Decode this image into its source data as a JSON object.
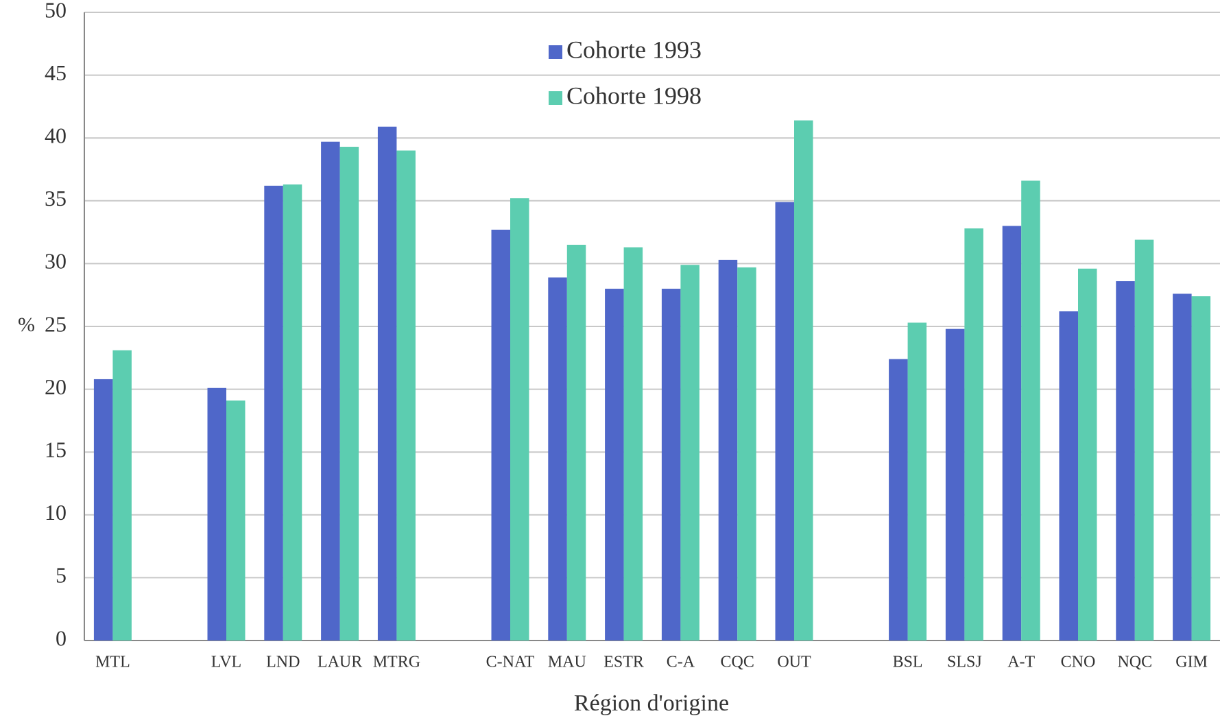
{
  "chart_data": {
    "type": "bar",
    "xlabel": "Région d'origine",
    "ylabel": "%",
    "categories": [
      "MTL",
      null,
      "LVL",
      "LND",
      "LAUR",
      "MTRG",
      null,
      "C-NAT",
      "MAU",
      "ESTR",
      "C-A",
      "CQC",
      "OUT",
      null,
      "BSL",
      "SLSJ",
      "A-T",
      "CNO",
      "NQC",
      "GIM"
    ],
    "series": [
      {
        "name": "Cohorte 1993",
        "color": "#4f67c9",
        "values": [
          20.8,
          null,
          20.1,
          36.2,
          39.7,
          40.9,
          null,
          32.7,
          28.9,
          28.0,
          28.0,
          30.3,
          34.9,
          null,
          22.4,
          24.8,
          33.0,
          26.2,
          28.6,
          27.6
        ]
      },
      {
        "name": "Cohorte 1998",
        "color": "#5ccdb0",
        "values": [
          23.1,
          null,
          19.1,
          36.3,
          39.3,
          39.0,
          null,
          35.2,
          31.5,
          31.3,
          29.9,
          29.7,
          41.4,
          null,
          25.3,
          32.8,
          36.6,
          29.6,
          31.9,
          27.4
        ]
      }
    ],
    "ylim": [
      0,
      50
    ],
    "yticks": [
      0,
      5,
      10,
      15,
      20,
      25,
      30,
      35,
      40,
      45,
      50
    ],
    "grid": true,
    "legend": "top"
  }
}
